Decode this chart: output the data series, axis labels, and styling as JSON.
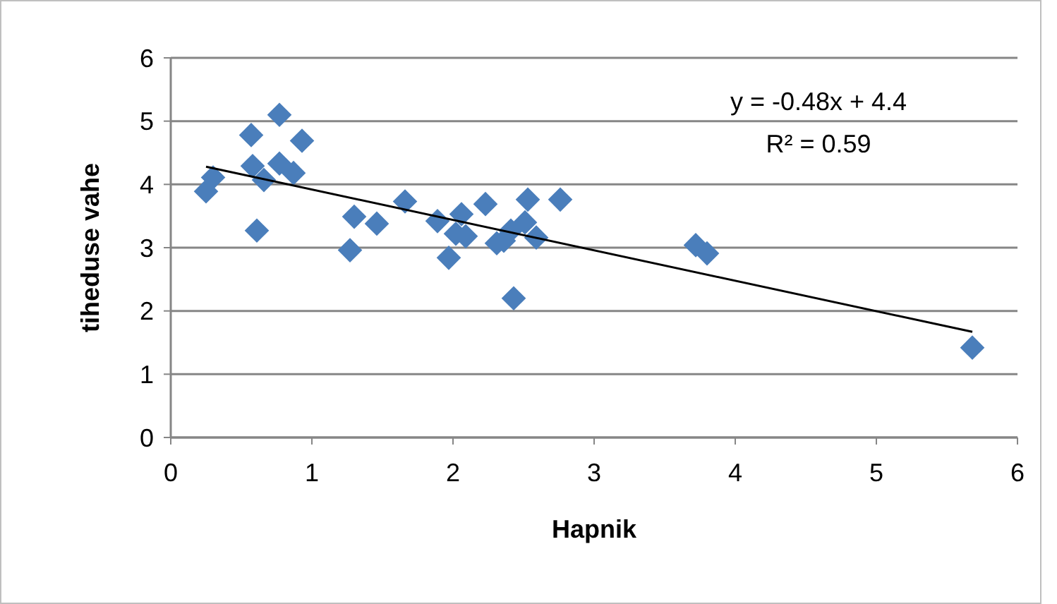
{
  "chart_data": {
    "type": "scatter",
    "xlabel": "Hapnik",
    "ylabel": "tiheduse vahe",
    "xlim": [
      0,
      6
    ],
    "ylim": [
      0,
      6
    ],
    "xticks": [
      0,
      1,
      2,
      3,
      4,
      5,
      6
    ],
    "yticks": [
      0,
      1,
      2,
      3,
      4,
      5,
      6
    ],
    "grid": "y",
    "marker": "diamond",
    "annotations": [
      "y = -0.48x + 4.4",
      "R² = 0.59"
    ],
    "series": [
      {
        "color": "#4a7ebb",
        "x": [
          0.25,
          0.3,
          0.57,
          0.77,
          0.93,
          0.58,
          0.66,
          0.77,
          0.87,
          0.61,
          1.3,
          1.46,
          1.27,
          1.66,
          1.89,
          2.06,
          1.97,
          2.02,
          2.09,
          2.23,
          2.31,
          2.36,
          2.41,
          2.51,
          2.53,
          2.59,
          2.76,
          2.43,
          3.72,
          3.8,
          5.68
        ],
        "values": [
          3.89,
          4.11,
          4.78,
          5.1,
          4.69,
          4.29,
          4.07,
          4.33,
          4.18,
          3.27,
          3.49,
          3.38,
          2.96,
          3.73,
          3.42,
          3.53,
          2.84,
          3.22,
          3.18,
          3.69,
          3.07,
          3.11,
          3.27,
          3.4,
          3.76,
          3.16,
          3.76,
          2.2,
          3.04,
          2.91,
          1.42
        ]
      },
      {
        "type": "line",
        "color": "#000000",
        "marker": "none",
        "x": [
          0.25,
          5.68
        ],
        "values": [
          4.28,
          1.67
        ]
      }
    ]
  }
}
